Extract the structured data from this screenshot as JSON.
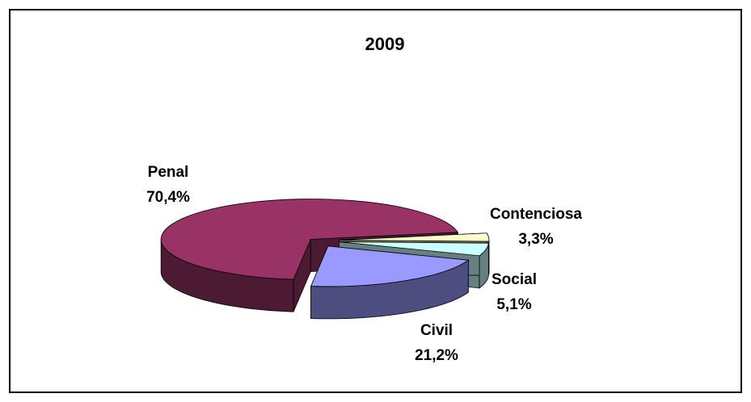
{
  "chart_data": {
    "type": "pie3d",
    "title": "2009",
    "categories": [
      "Penal",
      "Civil",
      "Social",
      "Contenciosa"
    ],
    "values": [
      70.4,
      21.2,
      5.1,
      3.3
    ],
    "value_labels": [
      "70,4%",
      "21,2%",
      "5,1%",
      "3,3%"
    ],
    "colors": [
      "#993366",
      "#9999ff",
      "#ccffff",
      "#ffffcc"
    ]
  }
}
